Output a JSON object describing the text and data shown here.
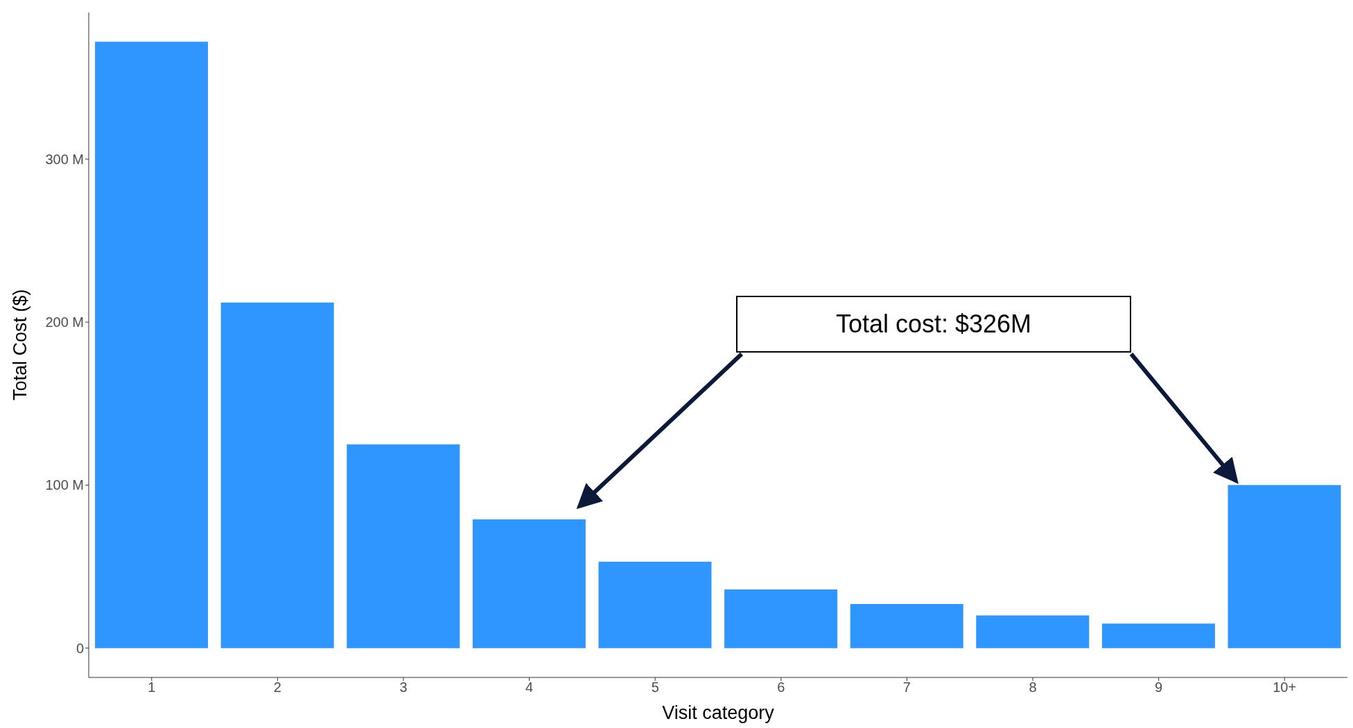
{
  "chart_data": {
    "type": "bar",
    "xlabel": "Visit category",
    "ylabel": "Total Cost ($)",
    "categories": [
      "1",
      "2",
      "3",
      "4",
      "5",
      "6",
      "7",
      "8",
      "9",
      "10+"
    ],
    "values": [
      372,
      212,
      125,
      79,
      53,
      36,
      27,
      20,
      15,
      100
    ],
    "color": "#2f95ff",
    "ylim": [
      -18,
      390
    ],
    "yticks": [
      0,
      {
        "value": 100,
        "label": "100 M"
      },
      {
        "value": 200,
        "label": "200 M"
      },
      {
        "value": 300,
        "label": "300 M"
      }
    ],
    "grid": false,
    "annotations": [
      "Total cost: $326M"
    ]
  }
}
